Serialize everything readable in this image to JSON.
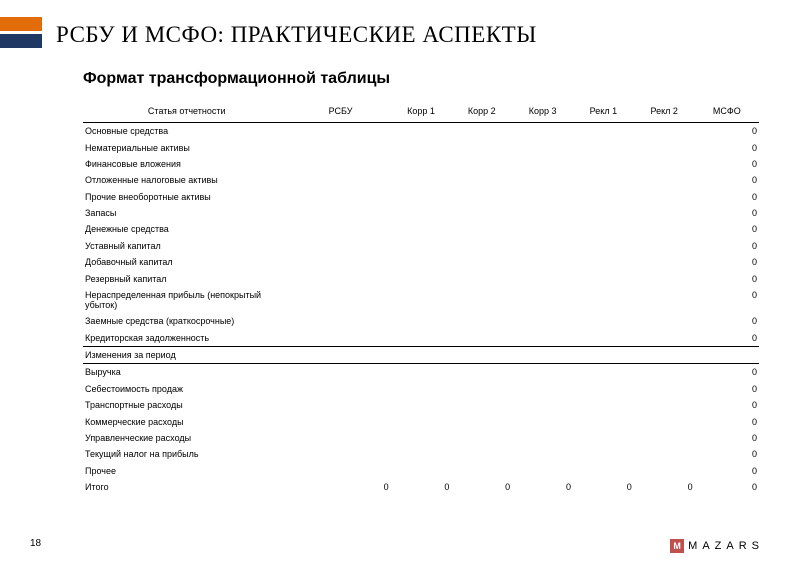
{
  "page_title": "РСБУ И МСФО: ПРАКТИЧЕСКИЕ АСПЕКТЫ",
  "subtitle": "Формат трансформационной таблицы",
  "page_number": "18",
  "logo": {
    "mark": "M",
    "text": "MAZARS"
  },
  "table": {
    "columns": [
      "Статья отчетности",
      "РСБУ",
      "Корр 1",
      "Корр 2",
      "Корр 3",
      "Рекл 1",
      "Рекл 2",
      "МСФО"
    ],
    "rows": [
      {
        "label": "Основные средства",
        "msfo": "0"
      },
      {
        "label": "Нематериальные активы",
        "msfo": "0"
      },
      {
        "label": "Финансовые вложения",
        "msfo": "0"
      },
      {
        "label": "Отложенные налоговые активы",
        "msfo": "0"
      },
      {
        "label": "Прочие внеоборотные активы",
        "msfo": "0"
      },
      {
        "label": "Запасы",
        "msfo": "0"
      },
      {
        "label": "Денежные средства",
        "msfo": "0"
      },
      {
        "label": "Уставный капитал",
        "msfo": "0"
      },
      {
        "label": "Добавочный капитал",
        "msfo": "0"
      },
      {
        "label": "Резервный капитал",
        "msfo": "0"
      },
      {
        "label": "Нераспределенная прибыль (непокрытый убыток)",
        "msfo": "0"
      },
      {
        "label": "Заемные средства (краткосрочные)",
        "msfo": "0"
      },
      {
        "label": "Кредиторская задолженность",
        "msfo": "0",
        "section_end": true
      },
      {
        "label": "Изменения за период",
        "msfo": "",
        "section_end": true
      },
      {
        "label": "Выручка",
        "msfo": "0"
      },
      {
        "label": "Себестоимость продаж",
        "msfo": "0"
      },
      {
        "label": "Транспортные расходы",
        "msfo": "0"
      },
      {
        "label": "Коммерческие расходы",
        "msfo": "0"
      },
      {
        "label": "Управленческие расходы",
        "msfo": "0"
      },
      {
        "label": "Текущий налог на прибыль",
        "msfo": "0"
      },
      {
        "label": "Прочее",
        "msfo": "0"
      }
    ],
    "totals": {
      "label": "Итого",
      "rsbu": "0",
      "k1": "0",
      "k2": "0",
      "k3": "0",
      "r1": "0",
      "r2": "0",
      "msfo": "0"
    }
  }
}
